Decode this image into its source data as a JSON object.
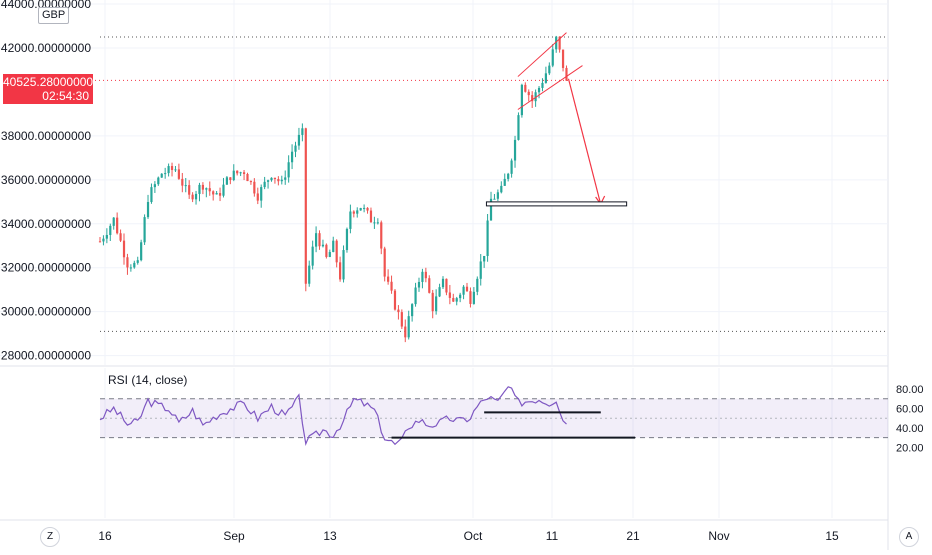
{
  "currency": "GBP",
  "last_price": {
    "value": "40525.28000000",
    "countdown": "02:54:30"
  },
  "price_axis": {
    "ticks": [
      "44000.00000000",
      "42000.00000000",
      "38000.00000000",
      "36000.00000000",
      "34000.00000000",
      "32000.00000000",
      "30000.00000000",
      "28000.00000000"
    ]
  },
  "rsi": {
    "title": "RSI (14, close)",
    "ticks": [
      "80.00",
      "60.00",
      "40.00",
      "20.00"
    ],
    "band": [
      30,
      70
    ],
    "mid": 50,
    "line_color": "#7e57c2"
  },
  "date_axis": {
    "ticks": [
      "16",
      "Sep",
      "13",
      "Oct",
      "11",
      "21",
      "Nov",
      "15"
    ]
  },
  "buttons": {
    "left": "Z",
    "right": "A"
  },
  "colors": {
    "up": "#26a69a",
    "down": "#ef5350",
    "accent": "#f23645"
  },
  "chart_data": [
    {
      "type": "candlestick",
      "x_unit": "date",
      "ylim": [
        27500,
        44300
      ],
      "y_ticks": [
        28000,
        30000,
        32000,
        34000,
        36000,
        38000,
        42000,
        44000
      ],
      "x_ticks": [
        "16",
        "Sep",
        "13",
        "Oct",
        "11",
        "21",
        "Nov",
        "15"
      ],
      "last_price": 40525.28,
      "series_shape": [
        [
          0,
          33200
        ],
        [
          4,
          34200
        ],
        [
          8,
          32200
        ],
        [
          11,
          32100
        ],
        [
          14,
          35200
        ],
        [
          18,
          36300
        ],
        [
          22,
          36500
        ],
        [
          26,
          35200
        ],
        [
          30,
          35800
        ],
        [
          34,
          35200
        ],
        [
          38,
          36200
        ],
        [
          42,
          36400
        ],
        [
          46,
          35300
        ],
        [
          50,
          36300
        ],
        [
          53,
          35800
        ],
        [
          56,
          37300
        ],
        [
          58,
          37900
        ],
        [
          59,
          38100
        ],
        [
          60,
          31300
        ],
        [
          63,
          33600
        ],
        [
          66,
          32400
        ],
        [
          68,
          33000
        ],
        [
          70,
          31600
        ],
        [
          73,
          34600
        ],
        [
          76,
          34800
        ],
        [
          79,
          34200
        ],
        [
          81,
          34300
        ],
        [
          83,
          31600
        ],
        [
          86,
          30300
        ],
        [
          89,
          29000
        ],
        [
          91,
          30300
        ],
        [
          94,
          32000
        ],
        [
          97,
          30200
        ],
        [
          100,
          31300
        ],
        [
          103,
          30400
        ],
        [
          106,
          31100
        ],
        [
          108,
          30600
        ],
        [
          110,
          31700
        ],
        [
          112,
          32700
        ],
        [
          114,
          35100
        ],
        [
          117,
          35500
        ],
        [
          119,
          36400
        ],
        [
          121,
          37800
        ],
        [
          123,
          40500
        ],
        [
          126,
          39600
        ],
        [
          128,
          40200
        ],
        [
          131,
          41200
        ],
        [
          133,
          42400
        ],
        [
          135,
          41200
        ],
        [
          136,
          40400
        ]
      ],
      "levels": [
        {
          "name": "upper dotted level",
          "value": 42500
        },
        {
          "name": "lower dotted level",
          "value": 29100
        },
        {
          "name": "target box",
          "from_bar": 108,
          "to_bar": 148,
          "low": 34800,
          "high": 34950
        }
      ],
      "annotations": [
        {
          "type": "channel",
          "from_bar": 123,
          "to_bar": 136
        },
        {
          "type": "arrow",
          "from": [
            136,
            40600
          ],
          "to": [
            148,
            34900
          ]
        }
      ]
    },
    {
      "type": "line",
      "name": "RSI (14, close)",
      "ylim": [
        15,
        88
      ],
      "y_ticks": [
        20,
        40,
        60,
        80
      ],
      "band": [
        30,
        70
      ],
      "mid": 50,
      "series_shape": [
        [
          0,
          50
        ],
        [
          4,
          60
        ],
        [
          8,
          44
        ],
        [
          11,
          46
        ],
        [
          14,
          68
        ],
        [
          17,
          63
        ],
        [
          20,
          60
        ],
        [
          23,
          45
        ],
        [
          27,
          58
        ],
        [
          30,
          43
        ],
        [
          34,
          53
        ],
        [
          38,
          60
        ],
        [
          42,
          65
        ],
        [
          46,
          50
        ],
        [
          50,
          62
        ],
        [
          54,
          52
        ],
        [
          58,
          70
        ],
        [
          60,
          26
        ],
        [
          62,
          30
        ],
        [
          65,
          38
        ],
        [
          68,
          33
        ],
        [
          71,
          48
        ],
        [
          74,
          69
        ],
        [
          77,
          65
        ],
        [
          80,
          58
        ],
        [
          83,
          30
        ],
        [
          86,
          23
        ],
        [
          88,
          26
        ],
        [
          90,
          42
        ],
        [
          93,
          48
        ],
        [
          96,
          43
        ],
        [
          99,
          45
        ],
        [
          102,
          50
        ],
        [
          105,
          47
        ],
        [
          108,
          51
        ],
        [
          110,
          62
        ],
        [
          113,
          72
        ],
        [
          116,
          66
        ],
        [
          119,
          82
        ],
        [
          122,
          66
        ],
        [
          125,
          68
        ],
        [
          128,
          70
        ],
        [
          131,
          66
        ],
        [
          133,
          70
        ],
        [
          135,
          48
        ],
        [
          136,
          46
        ]
      ],
      "levels": [
        {
          "name": "support line 1",
          "value": 56,
          "from_bar": 112,
          "to_bar": 146
        },
        {
          "name": "support line 2",
          "value": 30,
          "from_bar": 85,
          "to_bar": 156
        }
      ]
    }
  ]
}
